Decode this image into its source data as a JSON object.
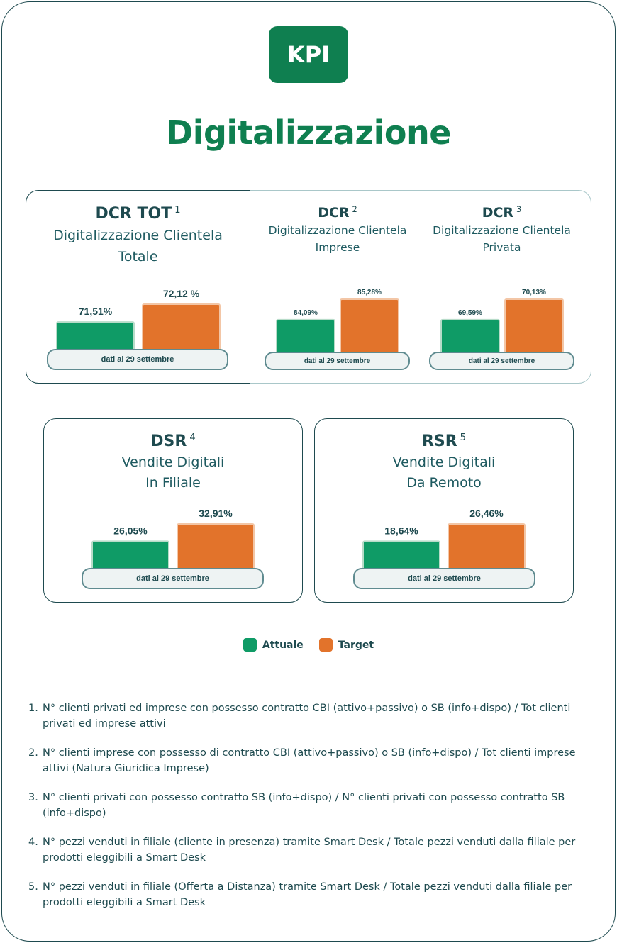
{
  "header": {
    "badge": "KPI",
    "title": "Digitalizzazione"
  },
  "colors": {
    "attuale": "#0f9b66",
    "target": "#e2732b",
    "primary_green": "#0f7f50",
    "border": "#1e4a4f"
  },
  "cards": {
    "dcr_tot": {
      "code": "DCR TOT",
      "sup": "1",
      "desc1": "Digitalizzazione Clientela",
      "desc2": "Totale",
      "date": "dati al 29 settembre"
    },
    "dcr_imprese": {
      "code": "DCR",
      "sup": "2",
      "desc1": "Digitalizzazione Clientela",
      "desc2": "Imprese",
      "date": "dati al 29 settembre"
    },
    "dcr_privata": {
      "code": "DCR",
      "sup": "3",
      "desc1": "Digitalizzazione Clientela",
      "desc2": "Privata",
      "date": "dati al 29 settembre"
    },
    "dsr": {
      "code": "DSR",
      "sup": "4",
      "desc1": "Vendite Digitali",
      "desc2": "In Filiale",
      "date": "dati al 29 settembre"
    },
    "rsr": {
      "code": "RSR",
      "sup": "5",
      "desc1": "Vendite Digitali",
      "desc2": "Da Remoto",
      "date": "dati al 29 settembre"
    }
  },
  "chart_data": [
    {
      "type": "bar",
      "title": "DCR TOT",
      "categories": [
        "Attuale",
        "Target"
      ],
      "values": [
        71.51,
        72.12
      ],
      "labels": [
        "71,51%",
        "72,12 %"
      ]
    },
    {
      "type": "bar",
      "title": "DCR",
      "categories": [
        "Attuale",
        "Target"
      ],
      "values": [
        84.09,
        85.28
      ],
      "labels": [
        "84,09%",
        "85,28%"
      ]
    },
    {
      "type": "bar",
      "title": "DCR",
      "categories": [
        "Attuale",
        "Target"
      ],
      "values": [
        69.59,
        70.13
      ],
      "labels": [
        "69,59%",
        "70,13%"
      ]
    },
    {
      "type": "bar",
      "title": "DSR",
      "categories": [
        "Attuale",
        "Target"
      ],
      "values": [
        26.05,
        32.91
      ],
      "labels": [
        "26,05%",
        "32,91%"
      ]
    },
    {
      "type": "bar",
      "title": "RSR",
      "categories": [
        "Attuale",
        "Target"
      ],
      "values": [
        18.64,
        26.46
      ],
      "labels": [
        "18,64%",
        "26,46%"
      ]
    }
  ],
  "legend": {
    "attuale": "Attuale",
    "target": "Target"
  },
  "notes": [
    {
      "num": "1.",
      "text": "N° clienti privati ed imprese con possesso contratto CBI (attivo+passivo) o SB (info+dispo) / Tot clienti privati ed imprese attivi"
    },
    {
      "num": "2.",
      "text": "N° clienti imprese con possesso di contratto CBI (attivo+passivo)  o SB (info+dispo) / Tot clienti imprese attivi (Natura Giuridica Imprese)"
    },
    {
      "num": "3.",
      "text": "N° clienti privati con possesso contratto SB (info+dispo) / N° clienti privati con possesso contratto SB (info+dispo)"
    },
    {
      "num": "4.",
      "text": "N° pezzi venduti in filiale (cliente in presenza) tramite Smart Desk / Totale pezzi venduti dalla filiale per prodotti eleggibili a Smart Desk"
    },
    {
      "num": "5.",
      "text": "N° pezzi venduti in filiale (Offerta a Distanza) tramite Smart Desk / Totale pezzi venduti dalla filiale per prodotti eleggibili a Smart Desk"
    }
  ]
}
